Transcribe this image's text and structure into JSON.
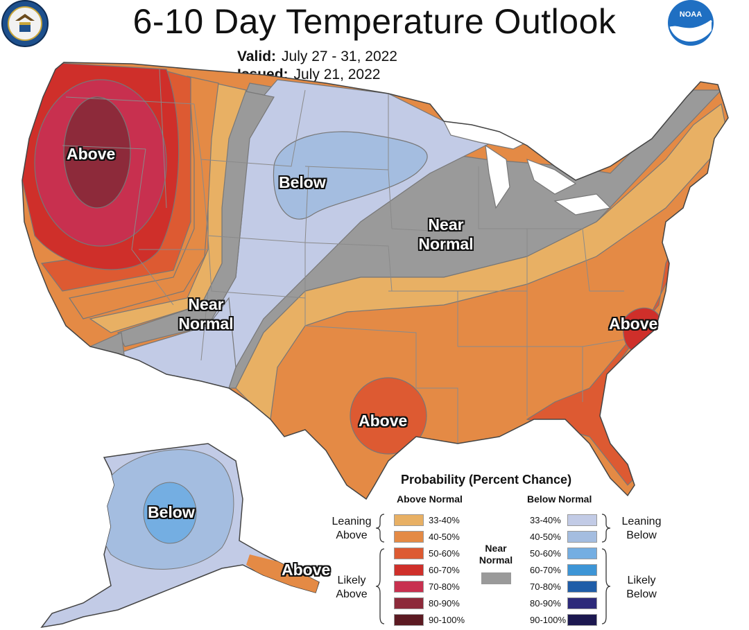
{
  "header": {
    "title": "6-10 Day Temperature Outlook",
    "valid_label": "Valid:",
    "valid_value": "July 27 - 31, 2022",
    "issued_label": "Issued:",
    "issued_value": "July 21, 2022"
  },
  "logos": {
    "left": "department-of-commerce-seal",
    "right": "noaa-logo",
    "noaa_text": "NOAA"
  },
  "map_labels": {
    "pnw_above": "Above",
    "plains_below": "Below",
    "midwest_near_line1": "Near",
    "midwest_near_line2": "Normal",
    "west_near_line1": "Near",
    "west_near_line2": "Normal",
    "carolina_above": "Above",
    "texas_above": "Above",
    "alaska_below": "Below",
    "alaska_panhandle_above": "Above"
  },
  "legend": {
    "title": "Probability (Percent Chance)",
    "above_header": "Above Normal",
    "below_header": "Below Normal",
    "leaning_above_1": "Leaning",
    "leaning_above_2": "Above",
    "likely_above_1": "Likely",
    "likely_above_2": "Above",
    "leaning_below_1": "Leaning",
    "leaning_below_2": "Below",
    "likely_below_1": "Likely",
    "likely_below_2": "Below",
    "near_1": "Near",
    "near_2": "Normal",
    "near_color": "#9a9a9a",
    "above_items": [
      {
        "label": "33-40%",
        "color": "#e8b064"
      },
      {
        "label": "40-50%",
        "color": "#e48a45"
      },
      {
        "label": "50-60%",
        "color": "#dd5a32"
      },
      {
        "label": "60-70%",
        "color": "#cf2f2a"
      },
      {
        "label": "70-80%",
        "color": "#c8304f"
      },
      {
        "label": "80-90%",
        "color": "#8d2a3a"
      },
      {
        "label": "90-100%",
        "color": "#5c1a22"
      }
    ],
    "below_items": [
      {
        "label": "33-40%",
        "color": "#c2cbe6"
      },
      {
        "label": "40-50%",
        "color": "#a4bde0"
      },
      {
        "label": "50-60%",
        "color": "#74aee2"
      },
      {
        "label": "60-70%",
        "color": "#3d95d6"
      },
      {
        "label": "70-80%",
        "color": "#1f5da8"
      },
      {
        "label": "80-90%",
        "color": "#2d2a7a"
      },
      {
        "label": "90-100%",
        "color": "#1c1850"
      }
    ]
  }
}
